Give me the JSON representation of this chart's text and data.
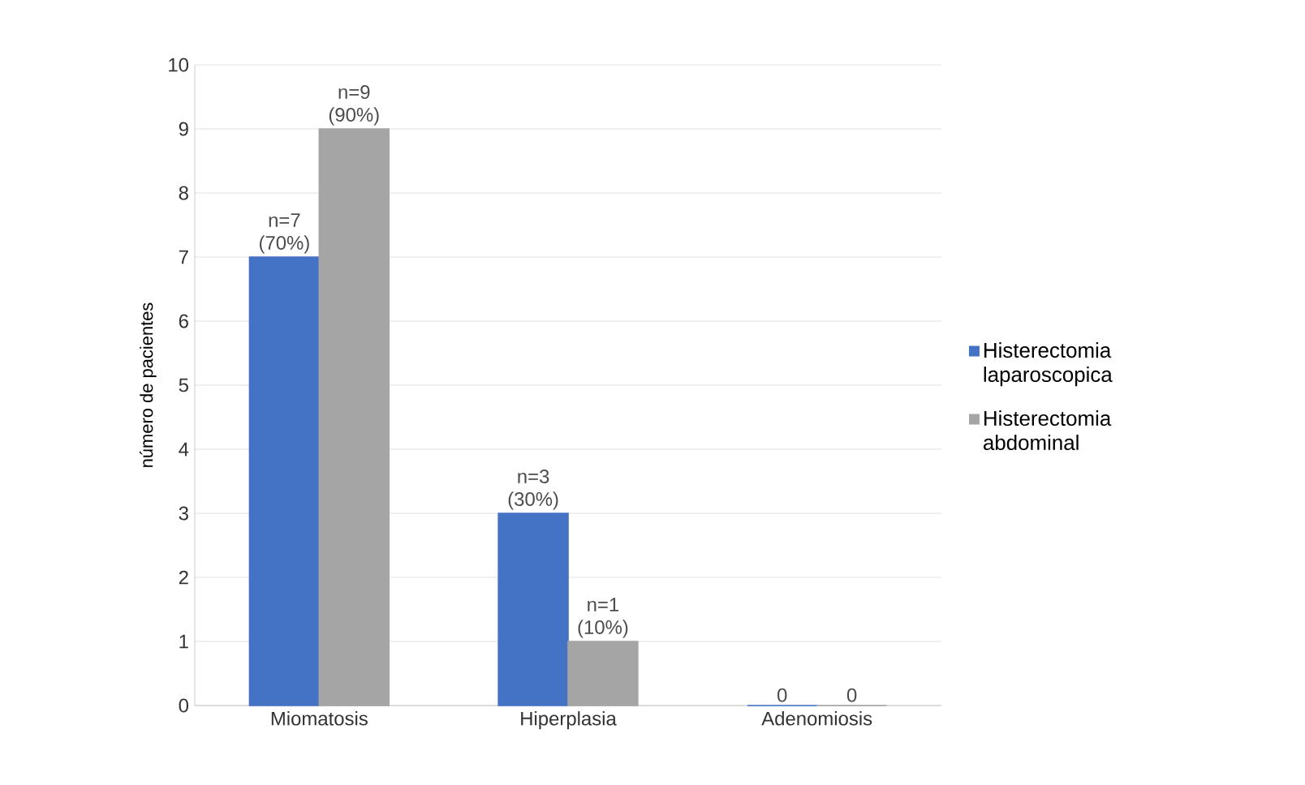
{
  "chart_data": {
    "type": "bar",
    "ylabel": "número de pacientes",
    "categories": [
      "Miomatosis",
      "Hiperplasia",
      "Adenomiosis"
    ],
    "series": [
      {
        "name": "Histerectomia laparoscopica",
        "color": "#4472c4",
        "values": [
          7,
          3,
          0
        ],
        "value_labels": [
          "n=7 (70%)",
          "n=3 (30%)",
          "0"
        ]
      },
      {
        "name": "Histerectomia abdominal",
        "color": "#a5a5a5",
        "values": [
          9,
          1,
          0
        ],
        "value_labels": [
          "n=9 (90%)",
          "n=1 (10%)",
          "0"
        ]
      }
    ],
    "ylim": [
      0,
      10
    ],
    "yticks": [
      0,
      1,
      2,
      3,
      4,
      5,
      6,
      7,
      8,
      9,
      10
    ],
    "grid": "y",
    "legend": "right"
  }
}
